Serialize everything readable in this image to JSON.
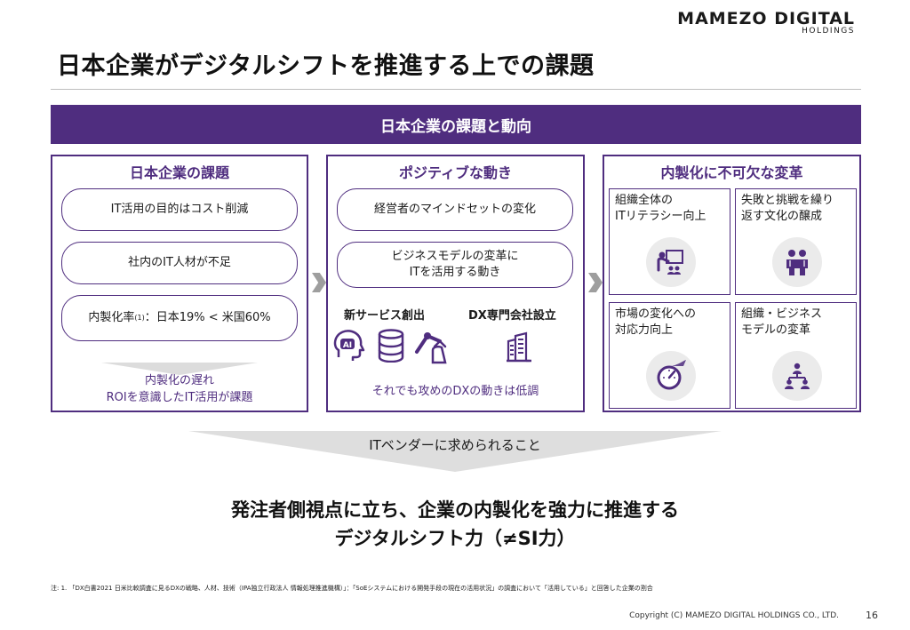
{
  "logo": {
    "main": "MAMEZO DIGITAL",
    "sub": "HOLDINGS"
  },
  "title": "日本企業がデジタルシフトを推進する上での課題",
  "banner": "日本企業の課題と動向",
  "col1": {
    "title": "日本企業の課題",
    "pills": [
      "IT活用の目的はコスト削減",
      "社内のIT人材が不足"
    ],
    "ratio_prefix": "内製化率",
    "ratio_sup": "(1)",
    "ratio_suffix": "：日本19% < 米国60%",
    "note_line1": "内製化の遅れ",
    "note_line2": "ROIを意識したIT活用が課題"
  },
  "col2": {
    "title": "ポジティブな動き",
    "pill1": "経営者のマインドセットの変化",
    "pill2_line1": "ビジネスモデルの変革に",
    "pill2_line2": "ITを活用する動き",
    "label_left": "新サービス創出",
    "label_right": "DX専門会社設立",
    "note": "それでも攻めのDXの動きは低調"
  },
  "col3": {
    "title": "内製化に不可欠な変革",
    "cells": [
      {
        "line1": "組織全体の",
        "line2": "ITリテラシー向上",
        "icon": "presentation-icon"
      },
      {
        "line1": "失敗と挑戦を繰り",
        "line2": "返す文化の醸成",
        "icon": "people-icon"
      },
      {
        "line1": "市場の変化への",
        "line2": "対応力向上",
        "icon": "speedometer-icon"
      },
      {
        "line1": "組織・ビジネス",
        "line2": "モデルの変革",
        "icon": "org-chart-icon"
      }
    ]
  },
  "arrow_text": "ITベンダーに求められること",
  "conclusion": {
    "line1": "発注者側視点に立ち、企業の内製化を強力に推進する",
    "line2": "デジタルシフト力（≠SI力）"
  },
  "footnote": "注: 1. 「DX白書2021 日米比較調査に見るDXの戦略、人材、技術（IPA独立行政法人 情報処理推進機構）」：「SoEシステムにおける開発手段の現在の活用状況」の調査において「活用している」と回答した企業の割合",
  "copyright": "Copyright (C) MAMEZO DIGITAL HOLDINGS CO., LTD.",
  "page_number": "16",
  "colors": {
    "accent": "#4f2d7f",
    "grey": "#dedede"
  }
}
